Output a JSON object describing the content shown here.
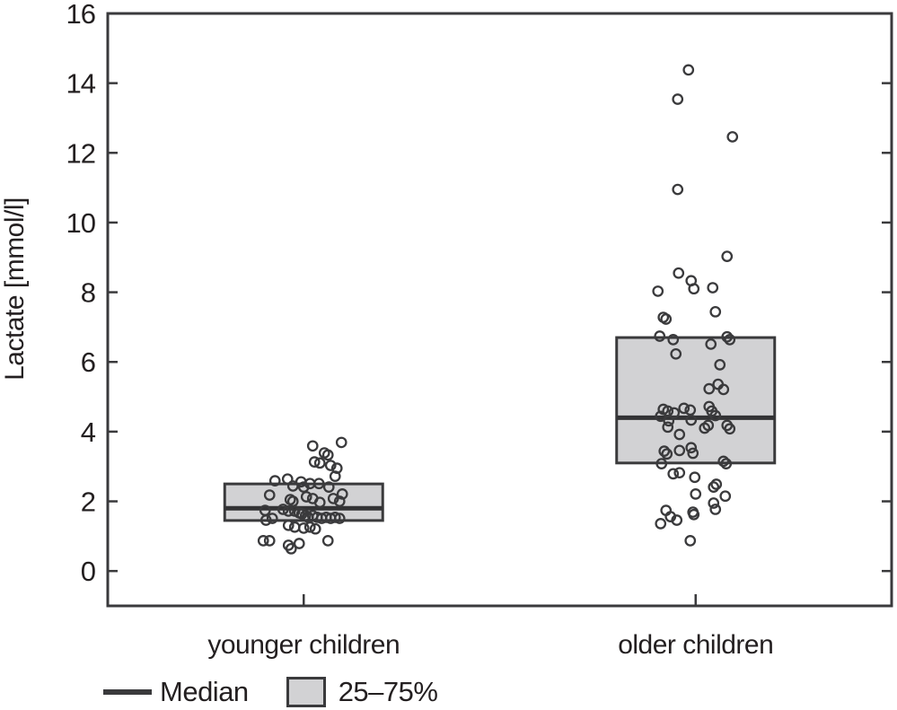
{
  "chart_data": {
    "type": "box-scatter",
    "title": "",
    "xlabel": "",
    "ylabel": "Lactate [mmol/l]",
    "ylim": [
      -1,
      16
    ],
    "yticks": [
      0,
      2,
      4,
      6,
      8,
      10,
      12,
      14,
      16
    ],
    "grid": false,
    "legend_position": "bottom-left",
    "colors": {
      "box_fill": "#d2d2d4",
      "stroke": "#3a3a3c",
      "median": "#333335",
      "text": "#231f20",
      "background": "#ffffff"
    },
    "legend": [
      {
        "swatch": "median-line",
        "label": "Median"
      },
      {
        "swatch": "iqr-box",
        "label": "25–75%"
      }
    ],
    "groups": [
      {
        "label": "younger children",
        "box": {
          "q1": 1.45,
          "median": 1.8,
          "q3": 2.5
        },
        "points": [
          [
            42,
            3.69
          ],
          [
            10,
            3.59
          ],
          [
            23,
            3.39
          ],
          [
            27,
            3.33
          ],
          [
            12,
            3.13
          ],
          [
            18,
            3.1
          ],
          [
            30,
            3.03
          ],
          [
            37,
            2.95
          ],
          [
            35,
            2.72
          ],
          [
            -18,
            2.64
          ],
          [
            -32,
            2.59
          ],
          [
            -3,
            2.56
          ],
          [
            7,
            2.51
          ],
          [
            17,
            2.51
          ],
          [
            -12,
            2.44
          ],
          [
            0,
            2.41
          ],
          [
            28,
            2.41
          ],
          [
            43,
            2.21
          ],
          [
            -38,
            2.18
          ],
          [
            3,
            2.13
          ],
          [
            10,
            2.08
          ],
          [
            33,
            2.08
          ],
          [
            -15,
            2.05
          ],
          [
            -12,
            2.0
          ],
          [
            40,
            2.0
          ],
          [
            18,
            1.97
          ],
          [
            -23,
            1.77
          ],
          [
            -43,
            1.74
          ],
          [
            -17,
            1.72
          ],
          [
            -10,
            1.72
          ],
          [
            -5,
            1.67
          ],
          [
            -2,
            1.64
          ],
          [
            2,
            1.59
          ],
          [
            10,
            1.59
          ],
          [
            5,
            1.54
          ],
          [
            15,
            1.54
          ],
          [
            25,
            1.54
          ],
          [
            35,
            1.54
          ],
          [
            -35,
            1.51
          ],
          [
            20,
            1.51
          ],
          [
            30,
            1.51
          ],
          [
            40,
            1.51
          ],
          [
            -42,
            1.46
          ],
          [
            -17,
            1.31
          ],
          [
            -10,
            1.26
          ],
          [
            7,
            1.26
          ],
          [
            0,
            1.23
          ],
          [
            13,
            1.21
          ],
          [
            -45,
            0.87
          ],
          [
            -38,
            0.87
          ],
          [
            27,
            0.87
          ],
          [
            -5,
            0.79
          ],
          [
            -17,
            0.74
          ],
          [
            -14,
            0.64
          ]
        ]
      },
      {
        "label": "older children",
        "box": {
          "q1": 3.1,
          "median": 4.4,
          "q3": 6.7
        },
        "points": [
          [
            -8,
            14.38
          ],
          [
            -20,
            13.54
          ],
          [
            41,
            12.46
          ],
          [
            -20,
            10.95
          ],
          [
            35,
            9.03
          ],
          [
            -19,
            8.55
          ],
          [
            -5,
            8.33
          ],
          [
            -2,
            8.1
          ],
          [
            19,
            8.13
          ],
          [
            -42,
            8.03
          ],
          [
            22,
            7.44
          ],
          [
            -36,
            7.28
          ],
          [
            -33,
            7.23
          ],
          [
            -40,
            6.74
          ],
          [
            35,
            6.72
          ],
          [
            38,
            6.64
          ],
          [
            -25,
            6.64
          ],
          [
            17,
            6.51
          ],
          [
            -22,
            6.23
          ],
          [
            27,
            5.92
          ],
          [
            25,
            5.36
          ],
          [
            15,
            5.23
          ],
          [
            31,
            5.21
          ],
          [
            -36,
            4.64
          ],
          [
            -31,
            4.59
          ],
          [
            -24,
            4.54
          ],
          [
            -13,
            4.67
          ],
          [
            -6,
            4.62
          ],
          [
            15,
            4.72
          ],
          [
            18,
            4.59
          ],
          [
            22,
            4.46
          ],
          [
            -39,
            4.44
          ],
          [
            -30,
            4.31
          ],
          [
            -5,
            4.33
          ],
          [
            -31,
            4.13
          ],
          [
            10,
            4.1
          ],
          [
            14,
            4.18
          ],
          [
            35,
            4.18
          ],
          [
            38,
            4.08
          ],
          [
            -18,
            3.92
          ],
          [
            -35,
            3.44
          ],
          [
            -32,
            3.36
          ],
          [
            -18,
            3.46
          ],
          [
            -5,
            3.54
          ],
          [
            -3,
            3.38
          ],
          [
            -38,
            3.08
          ],
          [
            31,
            3.15
          ],
          [
            34,
            3.08
          ],
          [
            -25,
            2.79
          ],
          [
            -18,
            2.82
          ],
          [
            -1,
            2.69
          ],
          [
            20,
            2.41
          ],
          [
            23,
            2.49
          ],
          [
            0,
            2.21
          ],
          [
            33,
            2.15
          ],
          [
            20,
            1.95
          ],
          [
            22,
            1.77
          ],
          [
            -33,
            1.74
          ],
          [
            -3,
            1.69
          ],
          [
            -2,
            1.62
          ],
          [
            -28,
            1.56
          ],
          [
            -21,
            1.46
          ],
          [
            -39,
            1.36
          ],
          [
            -6,
            0.87
          ]
        ]
      }
    ]
  }
}
